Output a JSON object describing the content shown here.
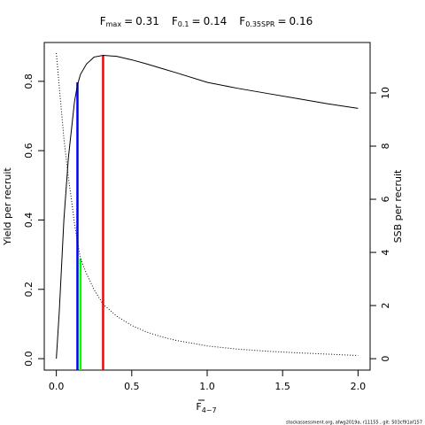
{
  "chart_data": {
    "type": "line",
    "title_items": [
      {
        "symbol": "F",
        "subscript": "max",
        "relation": "=",
        "value": 0.31
      },
      {
        "symbol": "F",
        "subscript": "0.1",
        "relation": "=",
        "value": 0.14
      },
      {
        "symbol": "F",
        "subscript": "0.35SPR",
        "relation": "=",
        "value": 0.16
      }
    ],
    "xlabel": "F",
    "xlabel_sub": "4−7",
    "ylabel": "Yield per recruit",
    "y2label": "SSB per recruit",
    "footer": "stockassessment.org, afwg2019a, r11155 , git: 503cf91af157",
    "x": [
      0,
      0.02,
      0.05,
      0.08,
      0.1,
      0.12,
      0.14,
      0.16,
      0.2,
      0.25,
      0.31,
      0.4,
      0.5,
      0.6,
      0.7,
      0.8,
      1.0,
      1.2,
      1.4,
      1.6,
      1.8,
      2.0
    ],
    "series": [
      {
        "name": "Yield per recruit",
        "color": "#000000",
        "axis": "y",
        "dash": false,
        "values": [
          0,
          0.14,
          0.4,
          0.58,
          0.66,
          0.74,
          0.79,
          0.82,
          0.85,
          0.87,
          0.875,
          0.872,
          0.862,
          0.85,
          0.837,
          0.824,
          0.797,
          0.78,
          0.765,
          0.75,
          0.735,
          0.722
        ]
      },
      {
        "name": "SSB per recruit",
        "color": "#000000",
        "axis": "y2",
        "dash": true,
        "values": [
          11.5,
          10.2,
          8.3,
          6.8,
          6.0,
          5.1,
          4.4,
          3.77,
          3.2,
          2.6,
          2.05,
          1.6,
          1.25,
          1.0,
          0.82,
          0.68,
          0.48,
          0.36,
          0.28,
          0.22,
          0.17,
          0.12
        ]
      }
    ],
    "reference_lines": [
      {
        "x": 0.14,
        "y": 0.797,
        "color": "#0000ff",
        "axis": "y"
      },
      {
        "x": 0.31,
        "y": 0.875,
        "color": "#ff0000",
        "axis": "y"
      },
      {
        "x": 0.16,
        "y": 3.77,
        "color": "#00ff00",
        "axis": "y2"
      }
    ],
    "xlim": [
      -0.08,
      2.08
    ],
    "xticks": [
      {
        "value": 0,
        "label": "0.0"
      },
      0.5,
      {
        "value": 1,
        "label": "1.0"
      },
      1.5,
      {
        "value": 2,
        "label": "2.0"
      }
    ],
    "ylim": [
      -0.033,
      0.912
    ],
    "yticks": [
      {
        "value": 0,
        "label": "0.0"
      },
      0.2,
      0.4,
      0.6,
      0.8
    ],
    "y2lim": [
      -0.43,
      11.9
    ],
    "y2ticks": [
      0,
      2,
      4,
      6,
      8,
      10
    ]
  }
}
